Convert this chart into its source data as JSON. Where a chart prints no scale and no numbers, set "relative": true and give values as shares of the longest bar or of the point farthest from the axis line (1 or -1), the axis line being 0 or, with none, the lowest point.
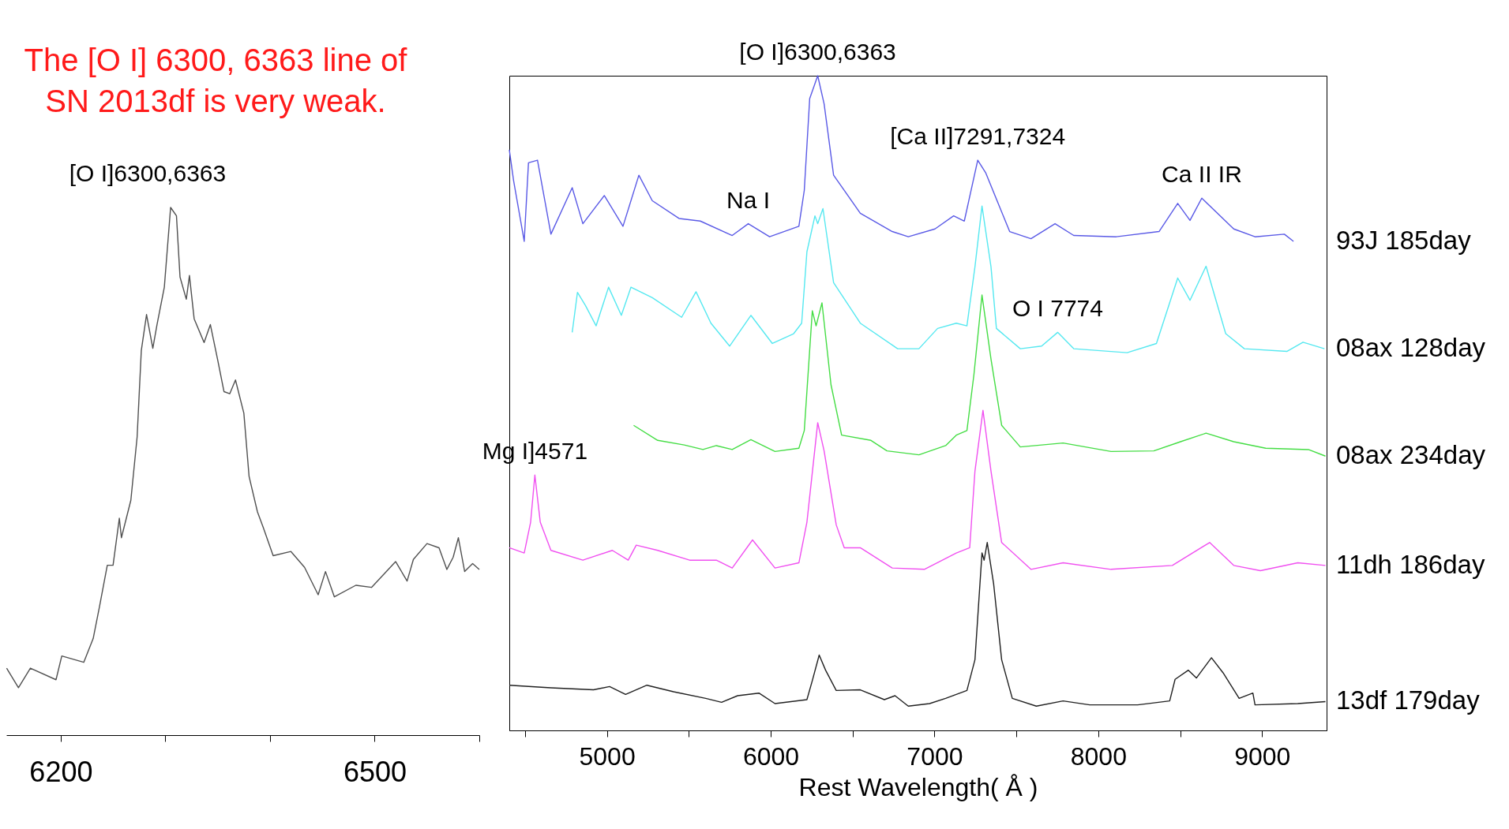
{
  "chart_data": [
    {
      "type": "line",
      "title": "[O I]6300,6363",
      "relative": true,
      "xlim": [
        6148,
        6600
      ],
      "xticks": [
        6200,
        {
          "value": 6300,
          "label": null
        },
        {
          "value": 6400,
          "label": null
        },
        6500,
        {
          "value": 6600,
          "label": null
        }
      ],
      "annotations": [
        "The [O I] 6300, 6363 line of SN 2013df is very weak."
      ],
      "series": [
        {
          "color": "#505050",
          "x": [
            6148.3,
            6159.6,
            6171,
            6195.5,
            6201,
            6222,
            6231,
            6237,
            6244.5,
            6250,
            6256,
            6258,
            6267,
            6273,
            6277,
            6282,
            6288,
            6292,
            6299,
            6305,
            6310.6,
            6314,
            6320,
            6323,
            6327.5,
            6337,
            6343,
            6350,
            6356,
            6361.5,
            6367,
            6375,
            6380,
            6388,
            6393.6,
            6403,
            6420,
            6433,
            6446,
            6453,
            6461.5,
            6482,
            6497,
            6520,
            6531,
            6537,
            6550,
            6561.5,
            6569,
            6575,
            6580,
            6586,
            6593.6,
            6600
          ],
          "values": [
            0.127,
            0.09,
            0.127,
            0.105,
            0.15,
            0.138,
            0.183,
            0.243,
            0.322,
            0.322,
            0.411,
            0.374,
            0.445,
            0.565,
            0.729,
            0.797,
            0.733,
            0.778,
            0.849,
            1.0,
            0.984,
            0.868,
            0.826,
            0.871,
            0.789,
            0.744,
            0.778,
            0.711,
            0.651,
            0.647,
            0.673,
            0.61,
            0.49,
            0.423,
            0.393,
            0.34,
            0.348,
            0.318,
            0.266,
            0.31,
            0.262,
            0.284,
            0.28,
            0.329,
            0.292,
            0.333,
            0.363,
            0.355,
            0.314,
            0.337,
            0.374,
            0.31,
            0.325,
            0.314
          ]
        }
      ]
    },
    {
      "type": "line",
      "relative": true,
      "xlabel": "Rest Wavelength( Å )",
      "xlim": [
        4404,
        9394
      ],
      "xticks": [
        {
          "value": 4500,
          "label": null
        },
        5000,
        {
          "value": 5500,
          "label": null
        },
        6000,
        {
          "value": 6500,
          "label": null
        },
        7000,
        {
          "value": 7500,
          "label": null
        },
        8000,
        {
          "value": 8500,
          "label": null
        },
        9000
      ],
      "annotations": [
        {
          "text": "[O I]6300,6363",
          "x": 6287,
          "y": 1.0
        },
        {
          "text": "Na I",
          "x": 5863,
          "y": 0.774
        },
        {
          "text": "[Ca II]7291,7324",
          "x": 7264,
          "y": 0.871
        },
        {
          "text": "Ca II IR",
          "x": 8632,
          "y": 0.813
        },
        {
          "text": "O I 7774",
          "x": 7752,
          "y": 0.608
        },
        {
          "text": "Mg I]4571",
          "x": 4560,
          "y": 0.39
        }
      ],
      "series": [
        {
          "name": "93J 185day",
          "color": "#5a5ae6",
          "x": [
            4404,
            4430,
            4495,
            4521,
            4576,
            4658,
            4788,
            4853,
            4984,
            5098,
            5195,
            5277,
            5440,
            5570,
            5765,
            5863,
            5993,
            6172,
            6205,
            6238,
            6287,
            6326,
            6384,
            6547,
            6742,
            6840,
            7003,
            7117,
            7182,
            7264,
            7312,
            7459,
            7589,
            7736,
            7850,
            8110,
            8371,
            8485,
            8560,
            8632,
            8827,
            8957,
            9136,
            9192
          ],
          "values": [
            0.887,
            0.84,
            0.747,
            0.867,
            0.871,
            0.758,
            0.829,
            0.774,
            0.817,
            0.77,
            0.848,
            0.809,
            0.782,
            0.778,
            0.756,
            0.774,
            0.754,
            0.77,
            0.825,
            0.965,
            1.0,
            0.957,
            0.848,
            0.79,
            0.762,
            0.754,
            0.766,
            0.786,
            0.778,
            0.871,
            0.852,
            0.762,
            0.751,
            0.774,
            0.756,
            0.754,
            0.762,
            0.805,
            0.779,
            0.813,
            0.766,
            0.754,
            0.758,
            0.747
          ]
        },
        {
          "name": "08ax 128day",
          "color": "#55e8f0",
          "x": [
            4788,
            4820,
            4869,
            4934,
            5010,
            5088,
            5147,
            5277,
            5456,
            5544,
            5635,
            5749,
            5879,
            6010,
            6140,
            6189,
            6221,
            6270,
            6287,
            6319,
            6384,
            6547,
            6775,
            6905,
            7019,
            7133,
            7198,
            7247,
            7290,
            7345,
            7378,
            7524,
            7654,
            7752,
            7850,
            8176,
            8355,
            8485,
            8560,
            8658,
            8778,
            8892,
            9153,
            9250,
            9381
          ],
          "values": [
            0.608,
            0.669,
            0.649,
            0.618,
            0.677,
            0.634,
            0.677,
            0.661,
            0.631,
            0.67,
            0.622,
            0.587,
            0.634,
            0.591,
            0.606,
            0.622,
            0.731,
            0.786,
            0.774,
            0.797,
            0.684,
            0.622,
            0.583,
            0.583,
            0.614,
            0.622,
            0.618,
            0.708,
            0.801,
            0.708,
            0.614,
            0.583,
            0.587,
            0.608,
            0.583,
            0.577,
            0.591,
            0.691,
            0.657,
            0.709,
            0.606,
            0.583,
            0.579,
            0.593,
            0.583
          ]
        },
        {
          "name": "08ax 234day",
          "color": "#44dd44",
          "x": [
            5163,
            5310,
            5472,
            5586,
            5668,
            5765,
            5879,
            6026,
            6172,
            6205,
            6254,
            6277,
            6313,
            6368,
            6433,
            6612,
            6710,
            6905,
            7068,
            7133,
            7198,
            7241,
            7290,
            7345,
            7410,
            7524,
            7785,
            8078,
            8339,
            8502,
            8658,
            8827,
            9022,
            9283,
            9387
          ],
          "values": [
            0.466,
            0.443,
            0.436,
            0.429,
            0.435,
            0.429,
            0.444,
            0.426,
            0.431,
            0.458,
            0.641,
            0.618,
            0.653,
            0.528,
            0.451,
            0.443,
            0.427,
            0.421,
            0.435,
            0.451,
            0.458,
            0.544,
            0.665,
            0.567,
            0.466,
            0.433,
            0.439,
            0.426,
            0.427,
            0.441,
            0.454,
            0.441,
            0.431,
            0.429,
            0.419
          ]
        },
        {
          "name": "11dh 186day",
          "color": "#f050f0",
          "x": [
            4404,
            4495,
            4534,
            4560,
            4593,
            4658,
            4853,
            5033,
            5130,
            5179,
            5310,
            5505,
            5668,
            5765,
            5889,
            6026,
            6172,
            6221,
            6287,
            6326,
            6400,
            6449,
            6547,
            6742,
            6938,
            7133,
            7215,
            7247,
            7296,
            7345,
            7410,
            7589,
            7785,
            8078,
            8452,
            8680,
            8827,
            8990,
            9218,
            9387
          ],
          "values": [
            0.279,
            0.271,
            0.318,
            0.39,
            0.318,
            0.275,
            0.26,
            0.275,
            0.26,
            0.283,
            0.275,
            0.26,
            0.26,
            0.248,
            0.291,
            0.248,
            0.256,
            0.318,
            0.47,
            0.427,
            0.314,
            0.279,
            0.279,
            0.248,
            0.246,
            0.271,
            0.279,
            0.396,
            0.489,
            0.396,
            0.287,
            0.246,
            0.256,
            0.246,
            0.252,
            0.287,
            0.252,
            0.244,
            0.256,
            0.252
          ]
        },
        {
          "name": "13df 179day",
          "color": "#202020",
          "x": [
            4404,
            4658,
            4918,
            5016,
            5114,
            5244,
            5407,
            5603,
            5700,
            5798,
            5928,
            6026,
            6221,
            6254,
            6296,
            6335,
            6400,
            6547,
            6694,
            6759,
            6840,
            6970,
            7068,
            7198,
            7247,
            7290,
            7303,
            7322,
            7361,
            7410,
            7475,
            7622,
            7785,
            7948,
            8241,
            8436,
            8469,
            8550,
            8599,
            8691,
            8762,
            8860,
            8944,
            8957,
            9218,
            9387
          ],
          "values": [
            0.069,
            0.065,
            0.062,
            0.067,
            0.055,
            0.069,
            0.059,
            0.049,
            0.043,
            0.053,
            0.057,
            0.041,
            0.047,
            0.076,
            0.115,
            0.092,
            0.061,
            0.062,
            0.047,
            0.053,
            0.037,
            0.041,
            0.049,
            0.061,
            0.108,
            0.271,
            0.26,
            0.287,
            0.224,
            0.108,
            0.049,
            0.037,
            0.045,
            0.039,
            0.039,
            0.045,
            0.078,
            0.092,
            0.08,
            0.111,
            0.088,
            0.049,
            0.057,
            0.039,
            0.041,
            0.044
          ]
        }
      ]
    }
  ]
}
